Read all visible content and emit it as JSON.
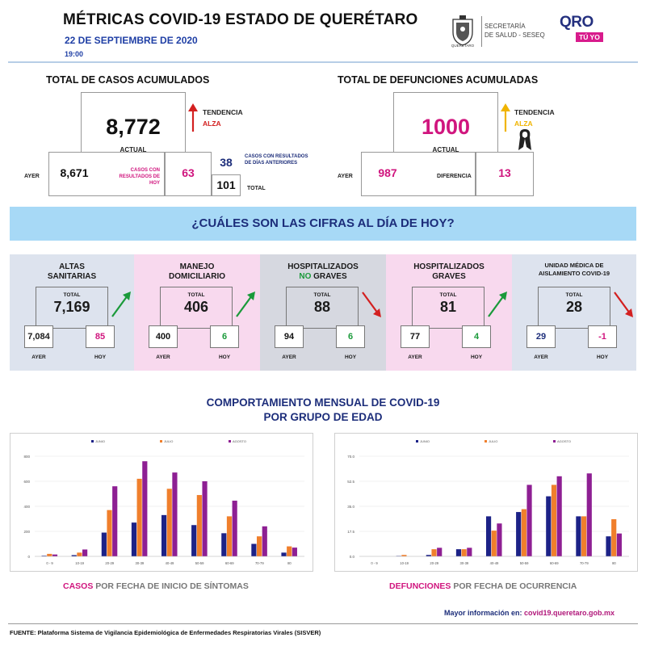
{
  "header": {
    "title": "MÉTRICAS COVID-19 ESTADO DE QUERÉTARO",
    "date": "22 DE SEPTIEMBRE DE 2020",
    "time": "19:00",
    "seal_label": "QUERÉTARO",
    "secretaria_line1": "SECRETARÍA",
    "secretaria_line2": "DE SALUD - SESEQ",
    "brand_qro": "QRO",
    "brand_tuyo": "TÚ YO"
  },
  "casos": {
    "heading": "TOTAL DE CASOS ACUMULADOS",
    "actual": "8,772",
    "actual_label": "ACTUAL",
    "tendencia_label": "TENDENCIA",
    "tendencia_value": "ALZA",
    "ayer_label": "AYER",
    "ayer_value": "8,671",
    "hoy_label": "CASOS CON RESULTADOS DE HOY",
    "hoy_value": "63",
    "anteriores_value": "38",
    "anteriores_label": "CASOS CON RESULTADOS DE DÍAS ANTERIORES",
    "total_value": "101",
    "total_label": "TOTAL"
  },
  "defunciones": {
    "heading": "TOTAL DE DEFUNCIONES ACUMULADAS",
    "actual": "1000",
    "actual_label": "ACTUAL",
    "tendencia_label": "TENDENCIA",
    "tendencia_value": "ALZA",
    "ayer_label": "AYER",
    "ayer_value": "987",
    "diferencia_label": "DIFERENCIA",
    "diferencia_value": "13"
  },
  "banner": {
    "text": "¿CUÁLES SON LAS CIFRAS AL DÍA DE HOY?"
  },
  "panels": [
    {
      "title1": "ALTAS",
      "title2": "SANITARIAS",
      "total_label": "TOTAL",
      "total": "7,169",
      "ayer": "7,084",
      "hoy": "85",
      "ayer_label": "AYER",
      "hoy_label": "HOY",
      "trend": "up",
      "bg": "#dde3ee"
    },
    {
      "title1": "MANEJO",
      "title2": "DOMICILIARIO",
      "total_label": "TOTAL",
      "total": "406",
      "ayer": "400",
      "hoy": "6",
      "ayer_label": "AYER",
      "hoy_label": "HOY",
      "trend": "up",
      "bg": "#f8d9ee"
    },
    {
      "title1": "HOSPITALIZADOS",
      "title2a": "NO",
      "title2b": " GRAVES",
      "total_label": "TOTAL",
      "total": "88",
      "ayer": "94",
      "hoy": "6",
      "ayer_label": "AYER",
      "hoy_label": "HOY",
      "trend": "down",
      "bg": "#d6d8e0"
    },
    {
      "title1": "HOSPITALIZADOS",
      "title2": "GRAVES",
      "total_label": "TOTAL",
      "total": "81",
      "ayer": "77",
      "hoy": "4",
      "ayer_label": "AYER",
      "hoy_label": "HOY",
      "trend": "up",
      "bg": "#f8d9ee"
    },
    {
      "title1": "UNIDAD MÉDICA DE",
      "title2": "AISLAMIENTO COVID-19",
      "total_label": "TOTAL",
      "total": "28",
      "ayer": "29",
      "hoy": "-1",
      "ayer_label": "AYER",
      "hoy_label": "HOY",
      "trend": "down",
      "bg": "#dde3ee"
    }
  ],
  "charts_section": {
    "title1": "COMPORTAMIENTO MENSUAL DE COVID-19",
    "title2": "POR GRUPO DE EDAD",
    "caption_left_highlight": "CASOS",
    "caption_left_rest": " POR FECHA DE INICIO DE SÍNTOMAS",
    "caption_right_highlight": "DEFUNCIONES",
    "caption_right_rest": " POR FECHA DE OCURRENCIA"
  },
  "colors": {
    "series": [
      "#1c2287",
      "#f07f2c",
      "#8e1f93"
    ],
    "highlight_pink": "#d0157e",
    "navy": "#1c2d7a",
    "green_arrow": "#1a9a3a",
    "red_arrow": "#d32020"
  },
  "chart_data": [
    {
      "type": "bar",
      "categories": [
        "0 - 9",
        "10-19",
        "20-29",
        "30-39",
        "40-49",
        "50-59",
        "60-69",
        "70-79",
        "80"
      ],
      "series": [
        {
          "name": "JUNIO",
          "values": [
            5,
            10,
            190,
            270,
            330,
            250,
            185,
            100,
            30
          ]
        },
        {
          "name": "JULIO",
          "values": [
            20,
            30,
            370,
            620,
            540,
            490,
            320,
            160,
            80
          ]
        },
        {
          "name": "AGOSTO",
          "values": [
            15,
            55,
            560,
            760,
            670,
            600,
            445,
            240,
            70
          ]
        }
      ],
      "yticks": [
        "0",
        "200",
        "400",
        "600",
        "800"
      ],
      "ylim": [
        0,
        800
      ]
    },
    {
      "type": "bar",
      "categories": [
        "0 - 9",
        "10-19",
        "20-29",
        "30-39",
        "40-49",
        "50-59",
        "60-69",
        "70-79",
        "80"
      ],
      "series": [
        {
          "name": "JUNIO",
          "values": [
            0,
            0.3,
            1,
            5,
            28,
            31,
            42,
            28,
            14
          ]
        },
        {
          "name": "JULIO",
          "values": [
            0,
            1,
            5,
            5,
            18,
            33,
            50,
            28,
            26
          ]
        },
        {
          "name": "AGOSTO",
          "values": [
            0,
            0,
            6,
            6,
            23,
            50,
            56,
            58,
            16
          ]
        }
      ],
      "yticks": [
        "0.0",
        "17.5",
        "35.0",
        "52.5",
        "70.0"
      ],
      "ylim": [
        0,
        70
      ]
    }
  ],
  "footer": {
    "more_info_label": "Mayor información en: ",
    "more_info_link": "covid19.queretaro.gob.mx",
    "fuente": "FUENTE: Plataforma Sistema de Vigilancia Epidemiológica de Enfermedades Respiratorias Virales (SISVER)"
  }
}
